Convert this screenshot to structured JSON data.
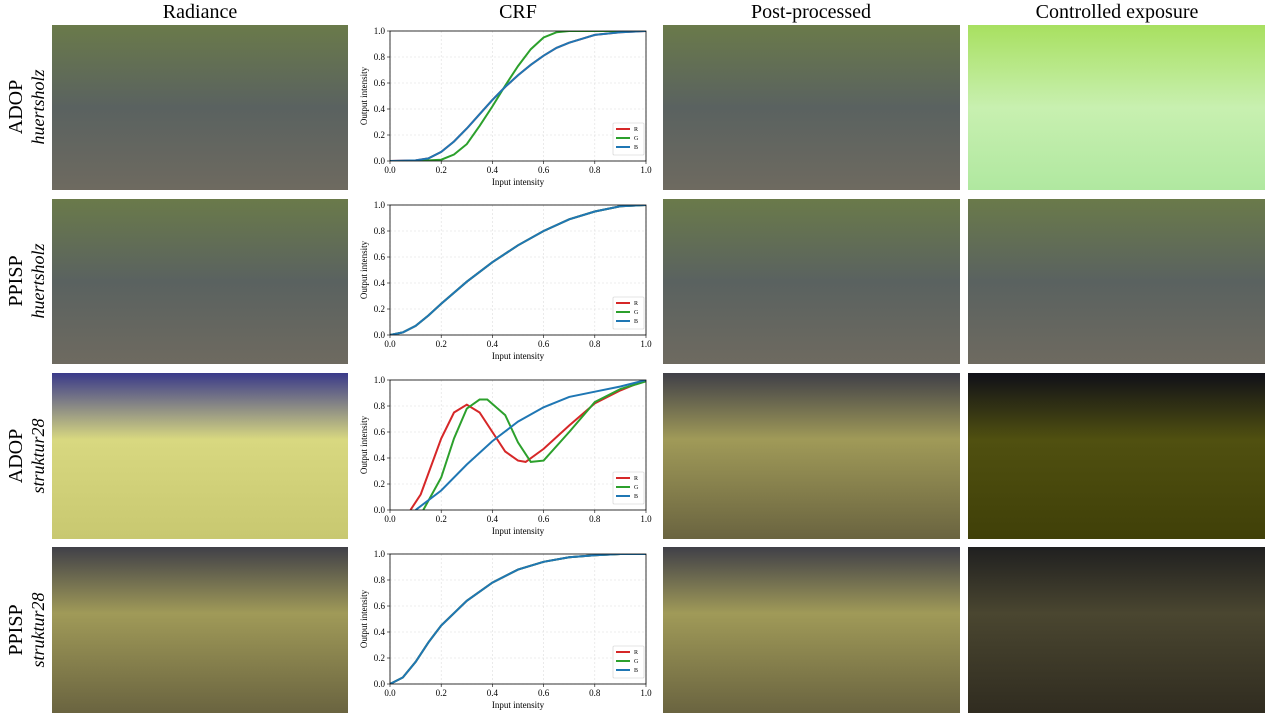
{
  "columns": [
    "Radiance",
    "CRF",
    "Post-processed",
    "Controlled exposure"
  ],
  "rows": [
    {
      "method": "ADOP",
      "scene": "huertsholz"
    },
    {
      "method": "PPISP",
      "scene": "huertsholz"
    },
    {
      "method": "ADOP",
      "scene": "struktur28"
    },
    {
      "method": "PPISP",
      "scene": "struktur28"
    }
  ],
  "chart_data": [
    {
      "type": "line",
      "xlabel": "Input intensity",
      "ylabel": "Output intensity",
      "xlim": [
        0,
        1
      ],
      "ylim": [
        0,
        1
      ],
      "xticks": [
        {
          "value": 0,
          "label": "0.0"
        },
        0.2,
        0.4,
        0.6,
        0.8,
        {
          "value": 1,
          "label": "1.0"
        }
      ],
      "yticks": [
        {
          "value": 0,
          "label": "0.0"
        },
        0.2,
        0.4,
        0.6,
        0.8,
        {
          "value": 1,
          "label": "1.0"
        }
      ],
      "grid": true,
      "legend": "lower right",
      "series": [
        {
          "name": "R",
          "color": "#d62728",
          "x": [
            0,
            0.1,
            0.15,
            0.2,
            0.25,
            0.3,
            0.35,
            0.4,
            0.45,
            0.5,
            0.55,
            0.6,
            0.65,
            0.7,
            0.75,
            0.8,
            0.9,
            1
          ],
          "values": [
            0,
            0.005,
            0.02,
            0.07,
            0.15,
            0.25,
            0.36,
            0.47,
            0.57,
            0.66,
            0.74,
            0.81,
            0.87,
            0.91,
            0.94,
            0.97,
            0.99,
            1
          ]
        },
        {
          "name": "G",
          "color": "#2ca02c",
          "x": [
            0,
            0.1,
            0.2,
            0.25,
            0.3,
            0.35,
            0.4,
            0.45,
            0.5,
            0.55,
            0.6,
            0.65,
            0.7,
            1
          ],
          "values": [
            0,
            0,
            0.01,
            0.05,
            0.13,
            0.27,
            0.42,
            0.58,
            0.73,
            0.86,
            0.95,
            0.99,
            1,
            1
          ]
        },
        {
          "name": "B",
          "color": "#1f77b4",
          "x": [
            0,
            0.1,
            0.15,
            0.2,
            0.25,
            0.3,
            0.35,
            0.4,
            0.45,
            0.5,
            0.55,
            0.6,
            0.65,
            0.7,
            0.75,
            0.8,
            0.9,
            1
          ],
          "values": [
            0,
            0.005,
            0.02,
            0.07,
            0.15,
            0.25,
            0.36,
            0.47,
            0.57,
            0.66,
            0.74,
            0.81,
            0.87,
            0.91,
            0.94,
            0.97,
            0.99,
            1
          ]
        }
      ]
    },
    {
      "type": "line",
      "xlabel": "Input intensity",
      "ylabel": "Output intensity",
      "xlim": [
        0,
        1
      ],
      "ylim": [
        0,
        1
      ],
      "xticks": [
        {
          "value": 0,
          "label": "0.0"
        },
        0.2,
        0.4,
        0.6,
        0.8,
        {
          "value": 1,
          "label": "1.0"
        }
      ],
      "yticks": [
        {
          "value": 0,
          "label": "0.0"
        },
        0.2,
        0.4,
        0.6,
        0.8,
        {
          "value": 1,
          "label": "1.0"
        }
      ],
      "grid": true,
      "legend": "lower right",
      "series": [
        {
          "name": "R",
          "color": "#d62728",
          "x": [
            0,
            0.05,
            0.1,
            0.15,
            0.2,
            0.3,
            0.4,
            0.5,
            0.6,
            0.7,
            0.8,
            0.9,
            1
          ],
          "values": [
            0,
            0.02,
            0.07,
            0.15,
            0.24,
            0.41,
            0.56,
            0.69,
            0.8,
            0.89,
            0.95,
            0.99,
            1
          ]
        },
        {
          "name": "G",
          "color": "#2ca02c",
          "x": [
            0,
            0.05,
            0.1,
            0.15,
            0.2,
            0.3,
            0.4,
            0.5,
            0.6,
            0.7,
            0.8,
            0.9,
            1
          ],
          "values": [
            0,
            0.02,
            0.07,
            0.15,
            0.24,
            0.41,
            0.56,
            0.69,
            0.8,
            0.89,
            0.95,
            0.99,
            1
          ]
        },
        {
          "name": "B",
          "color": "#1f77b4",
          "x": [
            0,
            0.05,
            0.1,
            0.15,
            0.2,
            0.3,
            0.4,
            0.5,
            0.6,
            0.7,
            0.8,
            0.9,
            1
          ],
          "values": [
            0,
            0.02,
            0.07,
            0.15,
            0.24,
            0.41,
            0.56,
            0.69,
            0.8,
            0.89,
            0.95,
            0.99,
            1
          ]
        }
      ]
    },
    {
      "type": "line",
      "xlabel": "Input intensity",
      "ylabel": "Output intensity",
      "xlim": [
        0,
        1
      ],
      "ylim": [
        0,
        1
      ],
      "xticks": [
        {
          "value": 0,
          "label": "0.0"
        },
        0.2,
        0.4,
        0.6,
        0.8,
        {
          "value": 1,
          "label": "1.0"
        }
      ],
      "yticks": [
        {
          "value": 0,
          "label": "0.0"
        },
        0.2,
        0.4,
        0.6,
        0.8,
        {
          "value": 1,
          "label": "1.0"
        }
      ],
      "grid": true,
      "legend": "lower right",
      "series": [
        {
          "name": "R",
          "color": "#d62728",
          "x": [
            0.08,
            0.12,
            0.2,
            0.25,
            0.3,
            0.35,
            0.4,
            0.45,
            0.5,
            0.53,
            0.6,
            0.7,
            0.8,
            0.9,
            1
          ],
          "values": [
            0,
            0.12,
            0.55,
            0.75,
            0.81,
            0.75,
            0.6,
            0.45,
            0.38,
            0.37,
            0.47,
            0.65,
            0.82,
            0.92,
            1
          ]
        },
        {
          "name": "G",
          "color": "#2ca02c",
          "x": [
            0.13,
            0.2,
            0.25,
            0.3,
            0.35,
            0.38,
            0.45,
            0.5,
            0.55,
            0.6,
            0.7,
            0.8,
            0.9,
            1
          ],
          "values": [
            0,
            0.25,
            0.55,
            0.78,
            0.85,
            0.85,
            0.73,
            0.52,
            0.37,
            0.38,
            0.6,
            0.83,
            0.93,
            0.99
          ]
        },
        {
          "name": "B",
          "color": "#1f77b4",
          "x": [
            0.1,
            0.2,
            0.3,
            0.4,
            0.5,
            0.6,
            0.7,
            0.8,
            0.9,
            1
          ],
          "values": [
            0,
            0.15,
            0.35,
            0.53,
            0.68,
            0.79,
            0.87,
            0.91,
            0.95,
            1
          ]
        }
      ]
    },
    {
      "type": "line",
      "xlabel": "Input intensity",
      "ylabel": "Output intensity",
      "xlim": [
        0,
        1
      ],
      "ylim": [
        0,
        1
      ],
      "xticks": [
        {
          "value": 0,
          "label": "0.0"
        },
        0.2,
        0.4,
        0.6,
        0.8,
        {
          "value": 1,
          "label": "1.0"
        }
      ],
      "yticks": [
        {
          "value": 0,
          "label": "0.0"
        },
        0.2,
        0.4,
        0.6,
        0.8,
        {
          "value": 1,
          "label": "1.0"
        }
      ],
      "grid": true,
      "legend": "lower right",
      "series": [
        {
          "name": "R",
          "color": "#d62728",
          "x": [
            0,
            0.05,
            0.1,
            0.15,
            0.2,
            0.3,
            0.4,
            0.5,
            0.6,
            0.7,
            0.8,
            0.9,
            1
          ],
          "values": [
            0,
            0.05,
            0.17,
            0.32,
            0.45,
            0.64,
            0.78,
            0.88,
            0.94,
            0.975,
            0.99,
            1,
            1
          ]
        },
        {
          "name": "G",
          "color": "#2ca02c",
          "x": [
            0,
            0.05,
            0.1,
            0.15,
            0.2,
            0.3,
            0.4,
            0.5,
            0.6,
            0.7,
            0.8,
            0.9,
            1
          ],
          "values": [
            0,
            0.05,
            0.17,
            0.32,
            0.45,
            0.64,
            0.78,
            0.88,
            0.94,
            0.975,
            0.99,
            1,
            1
          ]
        },
        {
          "name": "B",
          "color": "#1f77b4",
          "x": [
            0,
            0.05,
            0.1,
            0.15,
            0.2,
            0.3,
            0.4,
            0.5,
            0.6,
            0.7,
            0.8,
            0.9,
            1
          ],
          "values": [
            0,
            0.05,
            0.17,
            0.32,
            0.45,
            0.64,
            0.78,
            0.88,
            0.94,
            0.975,
            0.99,
            1,
            1
          ]
        }
      ]
    }
  ]
}
